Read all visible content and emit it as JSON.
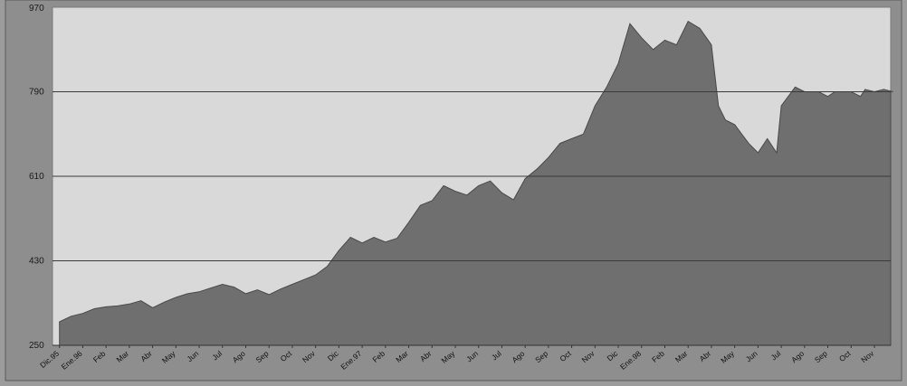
{
  "chart_data": {
    "type": "area",
    "title": "",
    "xlabel": "",
    "ylabel": "",
    "ylim": [
      250,
      970
    ],
    "yticks": [
      250,
      430,
      610,
      790,
      970
    ],
    "ytick_labels": [
      "250",
      "430",
      "610",
      "790",
      "970"
    ],
    "grid": true,
    "legend": "none",
    "colors": {
      "area_fill": "#6f6f6f",
      "plot_background": "#d9d9d9",
      "gridline": "#3a3a3a",
      "frame": "#7a7a7a"
    },
    "xtick_labels": [
      "Dic.95",
      "Ene.96",
      "Feb",
      "Mar",
      "Abr",
      "May",
      "Jun",
      "Jul",
      "Ago",
      "Sep",
      "Oct",
      "Nov",
      "Dic",
      "Ene.97",
      "Feb",
      "Mar",
      "Abr",
      "May",
      "Jun",
      "Jul",
      "Ago",
      "Sep",
      "Oct",
      "Nov",
      "Dic",
      "Ene.98",
      "Feb",
      "Mar",
      "Abr",
      "May",
      "Jun",
      "Jul",
      "Ago",
      "Sep",
      "Oct",
      "Nov"
    ],
    "series": [
      {
        "x": [
          0,
          0.5,
          1,
          1.5,
          2,
          2.5,
          3,
          3.5,
          4,
          4.5,
          5,
          5.5,
          6,
          6.5,
          7,
          7.5,
          8,
          8.5,
          9,
          9.5,
          10,
          10.5,
          11,
          11.5,
          12,
          12.5,
          13,
          13.5,
          14,
          14.5,
          15,
          15.5,
          16,
          16.5,
          17,
          17.5,
          18,
          18.5,
          19,
          19.5,
          20,
          20.5,
          21,
          21.5,
          22,
          22.5,
          23,
          23.5,
          24,
          24.5,
          25,
          25.5,
          26,
          26.5,
          27,
          27.5,
          28,
          28.3,
          28.6,
          29,
          29.3,
          29.6,
          30,
          30.4,
          30.8,
          31,
          31.3,
          31.6,
          32,
          32.3,
          32.6,
          33,
          33.3,
          33.6,
          34,
          34.4,
          34.6,
          35,
          35.4,
          35.8
        ],
        "values": [
          300,
          312,
          318,
          328,
          332,
          334,
          338,
          345,
          330,
          342,
          352,
          360,
          364,
          372,
          380,
          374,
          360,
          368,
          358,
          370,
          380,
          390,
          400,
          418,
          452,
          480,
          468,
          480,
          470,
          478,
          512,
          548,
          558,
          590,
          578,
          570,
          590,
          600,
          575,
          560,
          605,
          625,
          650,
          680,
          690,
          700,
          760,
          800,
          850,
          935,
          905,
          880,
          900,
          890,
          940,
          925,
          890,
          760,
          730,
          720,
          700,
          680,
          660,
          690,
          660,
          760,
          780,
          800,
          790,
          790,
          790,
          780,
          790,
          790,
          790,
          780,
          795,
          790,
          795,
          790
        ]
      }
    ]
  }
}
